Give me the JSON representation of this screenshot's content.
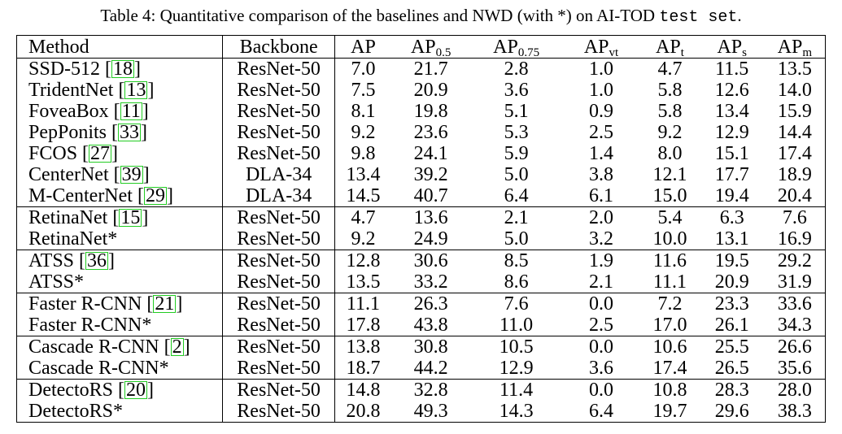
{
  "caption": {
    "text": "Table 4: Quantitative comparison of the baselines and NWD (with *) on AI-TOD ",
    "mono": "test set",
    "end": "."
  },
  "columns": {
    "method": "Method",
    "backbone": "Backbone",
    "ap": "AP",
    "ap05": "AP",
    "ap05_sub": "0.5",
    "ap075": "AP",
    "ap075_sub": "0.75",
    "apvt": "AP",
    "apvt_sub": "vt",
    "apt": "AP",
    "apt_sub": "t",
    "aps": "AP",
    "aps_sub": "s",
    "apm": "AP",
    "apm_sub": "m"
  },
  "rows": [
    {
      "method": "SSD-512 ",
      "cite": "18",
      "backbone": "ResNet-50",
      "values": [
        "7.0",
        "21.7",
        "2.8",
        "1.0",
        "4.7",
        "11.5",
        "13.5"
      ],
      "bold": false,
      "sep": false
    },
    {
      "method": "TridentNet ",
      "cite": "13",
      "backbone": "ResNet-50",
      "values": [
        "7.5",
        "20.9",
        "3.6",
        "1.0",
        "5.8",
        "12.6",
        "14.0"
      ],
      "bold": false,
      "sep": false
    },
    {
      "method": "FoveaBox ",
      "cite": "11",
      "backbone": "ResNet-50",
      "values": [
        "8.1",
        "19.8",
        "5.1",
        "0.9",
        "5.8",
        "13.4",
        "15.9"
      ],
      "bold": false,
      "sep": false
    },
    {
      "method": "PepPonits ",
      "cite": "33",
      "backbone": "ResNet-50",
      "values": [
        "9.2",
        "23.6",
        "5.3",
        "2.5",
        "9.2",
        "12.9",
        "14.4"
      ],
      "bold": false,
      "sep": false
    },
    {
      "method": "FCOS ",
      "cite": "27",
      "backbone": "ResNet-50",
      "values": [
        "9.8",
        "24.1",
        "5.9",
        "1.4",
        "8.0",
        "15.1",
        "17.4"
      ],
      "bold": false,
      "sep": false
    },
    {
      "method": "CenterNet ",
      "cite": "39",
      "backbone": "DLA-34",
      "values": [
        "13.4",
        "39.2",
        "5.0",
        "3.8",
        "12.1",
        "17.7",
        "18.9"
      ],
      "bold": false,
      "sep": false
    },
    {
      "method": "M-CenterNet ",
      "cite": "29",
      "backbone": "DLA-34",
      "values": [
        "14.5",
        "40.7",
        "6.4",
        "6.1",
        "15.0",
        "19.4",
        "20.4"
      ],
      "bold": false,
      "sep": false
    },
    {
      "method": "RetinaNet ",
      "cite": "15",
      "backbone": "ResNet-50",
      "values": [
        "4.7",
        "13.6",
        "2.1",
        "2.0",
        "5.4",
        "6.3",
        "7.6"
      ],
      "bold": false,
      "sep": true
    },
    {
      "method": "RetinaNet*",
      "cite": "",
      "backbone": "ResNet-50",
      "values": [
        "9.2",
        "24.9",
        "5.0",
        "3.2",
        "10.0",
        "13.1",
        "16.9"
      ],
      "bold": false,
      "sep": false
    },
    {
      "method": "ATSS ",
      "cite": "36",
      "backbone": "ResNet-50",
      "values": [
        "12.8",
        "30.6",
        "8.5",
        "1.9",
        "11.6",
        "19.5",
        "29.2"
      ],
      "bold": false,
      "sep": true
    },
    {
      "method": "ATSS*",
      "cite": "",
      "backbone": "ResNet-50",
      "values": [
        "13.5",
        "33.2",
        "8.6",
        "2.1",
        "11.1",
        "20.9",
        "31.9"
      ],
      "bold": false,
      "sep": false
    },
    {
      "method": "Faster R-CNN ",
      "cite": "21",
      "backbone": "ResNet-50",
      "values": [
        "11.1",
        "26.3",
        "7.6",
        "0.0",
        "7.2",
        "23.3",
        "33.6"
      ],
      "bold": false,
      "sep": true
    },
    {
      "method": "Faster R-CNN*",
      "cite": "",
      "backbone": "ResNet-50",
      "values": [
        "17.8",
        "43.8",
        "11.0",
        "2.5",
        "17.0",
        "26.1",
        "34.3"
      ],
      "bold": false,
      "sep": false
    },
    {
      "method": "Cascade R-CNN ",
      "cite": "2",
      "backbone": "ResNet-50",
      "values": [
        "13.8",
        "30.8",
        "10.5",
        "0.0",
        "10.6",
        "25.5",
        "26.6"
      ],
      "bold": false,
      "sep": true
    },
    {
      "method": "Cascade R-CNN*",
      "cite": "",
      "backbone": "ResNet-50",
      "values": [
        "18.7",
        "44.2",
        "12.9",
        "3.6",
        "17.4",
        "26.5",
        "35.6"
      ],
      "bold": false,
      "sep": false
    },
    {
      "method": "DetectoRS ",
      "cite": "20",
      "backbone": "ResNet-50",
      "values": [
        "14.8",
        "32.8",
        "11.4",
        "0.0",
        "10.8",
        "28.3",
        "28.0"
      ],
      "bold": false,
      "sep": true
    },
    {
      "method": "DetectoRS*",
      "cite": "",
      "backbone": "ResNet-50",
      "values": [
        "20.8",
        "49.3",
        "14.3",
        "6.4",
        "19.7",
        "29.6",
        "38.3"
      ],
      "bold": true,
      "sep": false
    }
  ],
  "colors": {
    "cite_box": "#22cc22"
  }
}
